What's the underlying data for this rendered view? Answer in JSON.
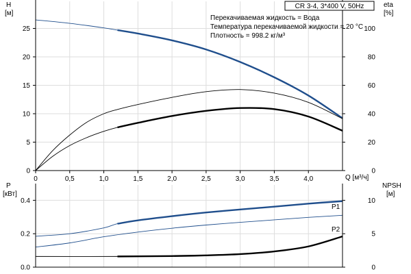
{
  "chart_data": [
    {
      "id": "qh",
      "type": "line",
      "title": "CR 3-4, 3*400 V, 50Hz",
      "annotations": [
        "Перекачиваемая жидкость = Вода",
        "Температура перекачиваемой жидкости = 20 °C",
        "Плотность = 998.2 кг/м³"
      ],
      "xlabel": "Q [м³/ч]",
      "ylabel_left": [
        "H",
        "[м]"
      ],
      "ylabel_right": [
        "eta",
        "[%]"
      ],
      "xlim": [
        0,
        4.5
      ],
      "ylim_left": [
        0,
        30
      ],
      "ylim_right": [
        0,
        120
      ],
      "x_ticks": [
        "0",
        "0,5",
        "1,0",
        "1,5",
        "2,0",
        "2,5",
        "3,0",
        "3,5",
        "4,0"
      ],
      "y_ticks_left": [
        "0",
        "5",
        "10",
        "15",
        "20",
        "25"
      ],
      "y_ticks_right": [
        "0",
        "20",
        "40",
        "60",
        "80",
        "100"
      ],
      "grid": true,
      "series": [
        {
          "axis": "left",
          "color": "#1f4e8c",
          "x": [
            0,
            0.5,
            1.0,
            1.2,
            1.5,
            2.0,
            2.5,
            3.0,
            3.5,
            4.0,
            4.5
          ],
          "y": [
            26.5,
            25.9,
            25.1,
            24.7,
            24.1,
            22.9,
            21.3,
            19.1,
            16.4,
            13.2,
            9.2
          ],
          "thick_from": 1.2
        },
        {
          "axis": "right",
          "color": "#000000",
          "x": [
            0,
            0.25,
            0.5,
            0.75,
            1.0,
            1.2,
            1.5,
            2.0,
            2.5,
            3.0,
            3.5,
            4.0,
            4.5
          ],
          "y": [
            0,
            14,
            25,
            34,
            40,
            43,
            46.5,
            51.5,
            55.5,
            57,
            54.5,
            48,
            36.5
          ]
        },
        {
          "axis": "left",
          "color": "#000000",
          "x": [
            0,
            0.25,
            0.5,
            0.75,
            1.0,
            1.2,
            1.5,
            2.0,
            2.5,
            3.0,
            3.5,
            4.0,
            4.5
          ],
          "y": [
            0,
            2.5,
            4.4,
            5.8,
            6.9,
            7.6,
            8.4,
            9.6,
            10.5,
            11.0,
            10.8,
            9.5,
            7.0
          ],
          "thick_from": 1.2
        }
      ]
    },
    {
      "id": "power",
      "type": "line",
      "ylabel_left": [
        "P",
        "[кВт]"
      ],
      "ylabel_right": [
        "NPSH",
        "[м]"
      ],
      "xlim": [
        0,
        4.5
      ],
      "ylim_left": [
        0,
        0.5
      ],
      "ylim_right": [
        0,
        12.5
      ],
      "y_ticks_left": [
        "0.0",
        "0.2",
        "0.4"
      ],
      "y_ticks_right": [
        "0",
        "5",
        "10"
      ],
      "grid": true,
      "series": [
        {
          "name": "P1",
          "axis": "left",
          "color": "#1f4e8c",
          "x": [
            0,
            0.5,
            1.0,
            1.2,
            1.5,
            2.0,
            2.5,
            3.0,
            3.5,
            4.0,
            4.5
          ],
          "y": [
            0.185,
            0.2,
            0.235,
            0.26,
            0.28,
            0.305,
            0.327,
            0.345,
            0.362,
            0.38,
            0.395
          ],
          "thick_from": 1.2
        },
        {
          "name": "P2",
          "axis": "left",
          "color": "#1f4e8c",
          "x": [
            0,
            0.5,
            1.0,
            1.5,
            2.0,
            2.5,
            3.0,
            3.5,
            4.0,
            4.5
          ],
          "y": [
            0.12,
            0.145,
            0.182,
            0.21,
            0.233,
            0.252,
            0.268,
            0.283,
            0.298,
            0.31
          ]
        },
        {
          "axis": "right",
          "color": "#000000",
          "x": [
            0,
            1.2,
            1.5,
            2.0,
            2.5,
            3.0,
            3.5,
            4.0,
            4.5
          ],
          "y": [
            1.6,
            1.6,
            1.62,
            1.66,
            1.76,
            1.95,
            2.35,
            3.1,
            4.6
          ],
          "thick_from": 1.2
        }
      ]
    }
  ]
}
